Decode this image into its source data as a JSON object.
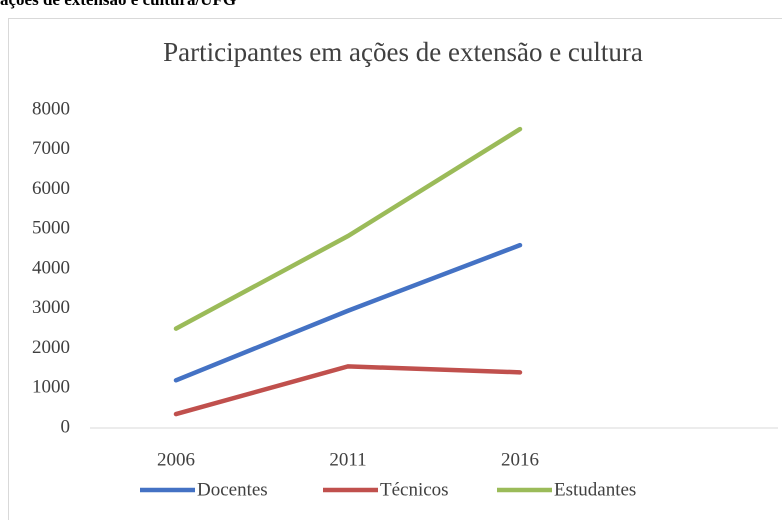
{
  "page_header": "ações de extensão e cultura/UFG",
  "chart_data": {
    "type": "line",
    "title": "Participantes em ações de extensão e cultura",
    "categories": [
      "2006",
      "2011",
      "2016",
      null
    ],
    "series": [
      {
        "name": "Docentes",
        "color": "#4472c4",
        "values": [
          1200,
          2950,
          4600,
          null
        ]
      },
      {
        "name": "Técnicos",
        "color": "#c0504d",
        "values": [
          350,
          1550,
          1400,
          null
        ]
      },
      {
        "name": "Estudantes",
        "color": "#9bbb59",
        "values": [
          2500,
          4830,
          7520,
          null
        ]
      }
    ],
    "ylim": [
      0,
      8000
    ],
    "yticks": [
      0,
      1000,
      2000,
      3000,
      4000,
      5000,
      6000,
      7000,
      8000
    ],
    "grid": false,
    "legend": "bottom"
  }
}
